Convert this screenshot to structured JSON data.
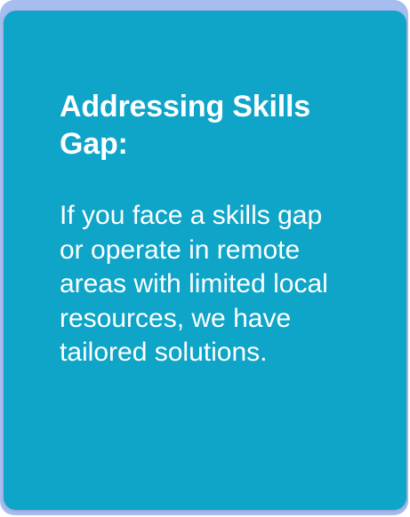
{
  "card": {
    "title": "Addressing Skills Gap:",
    "body": "If you face a skills gap or operate in remote areas with limited local resources, we have tailored solutions.",
    "colors": {
      "background": "#0ea5c8",
      "accent_strip": "#a7bdf0",
      "text": "#ffffff"
    }
  }
}
